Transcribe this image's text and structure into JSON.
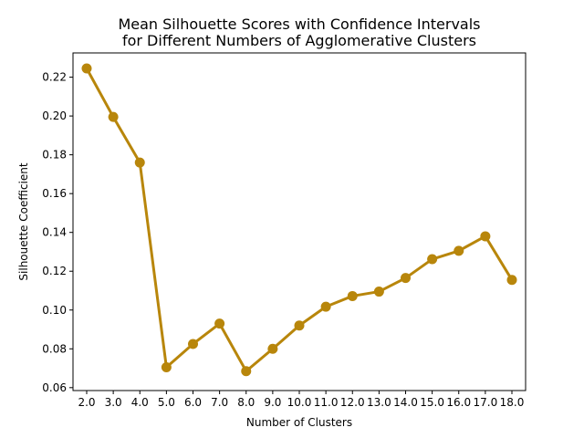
{
  "chart_data": {
    "type": "line",
    "title": [
      "Mean Silhouette Scores with Confidence Intervals",
      "for Different Numbers of Agglomerative Clusters"
    ],
    "xlabel": "Number of Clusters",
    "ylabel": "Silhouette Coefficient",
    "categories": [
      "2.0",
      "3.0",
      "4.0",
      "5.0",
      "6.0",
      "7.0",
      "8.0",
      "9.0",
      "10.0",
      "11.0",
      "12.0",
      "13.0",
      "14.0",
      "15.0",
      "16.0",
      "17.0",
      "18.0"
    ],
    "series": [
      {
        "values": [
          0.2245,
          0.1995,
          0.176,
          0.0705,
          0.0825,
          0.093,
          0.0685,
          0.08,
          0.092,
          0.1017,
          0.1072,
          0.1095,
          0.1165,
          0.1262,
          0.1305,
          0.138,
          0.1155
        ],
        "color": "#b8860b"
      }
    ],
    "ylim": [
      0.0585,
      0.2325
    ],
    "yticks": [
      0.06,
      0.08,
      0.1,
      0.12,
      0.14,
      0.16,
      0.18,
      0.2,
      0.22
    ],
    "ytick_labels": [
      "0.06",
      "0.08",
      "0.10",
      "0.12",
      "0.14",
      "0.16",
      "0.18",
      "0.20",
      "0.22"
    ],
    "grid": false,
    "legend": "none"
  }
}
